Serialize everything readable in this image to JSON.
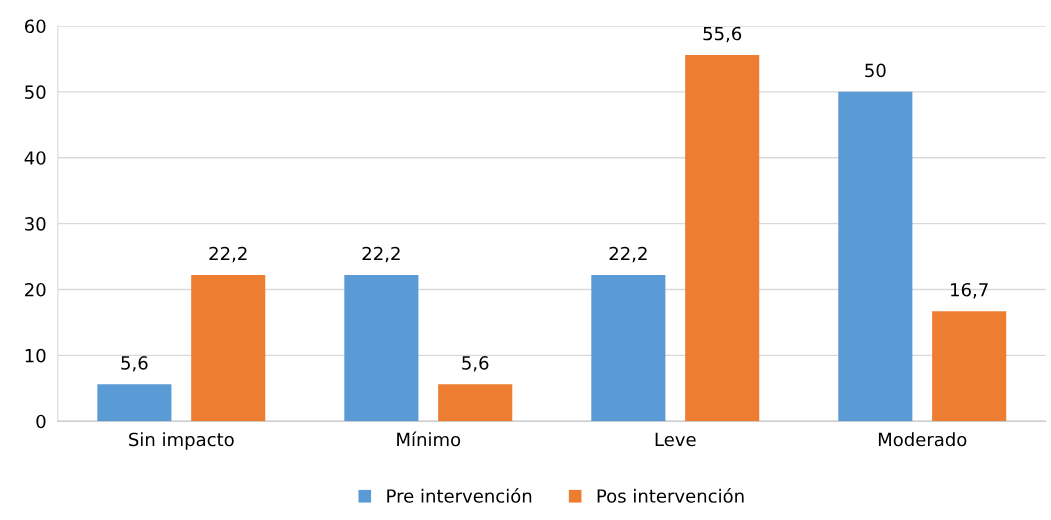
{
  "chart_data": {
    "type": "bar",
    "categories": [
      "Sin impacto",
      "Mínimo",
      "Leve",
      "Moderado"
    ],
    "series": [
      {
        "name": "Pre intervención",
        "color": "#5b9bd5",
        "values": [
          5.6,
          22.2,
          22.2,
          50
        ],
        "value_labels": [
          "5,6",
          "22,2",
          "22,2",
          "50"
        ]
      },
      {
        "name": "Pos intervención",
        "color": "#ed7d31",
        "values": [
          22.2,
          5.6,
          55.6,
          16.7
        ],
        "value_labels": [
          "22,2",
          "5,6",
          "55,6",
          "16,7"
        ]
      }
    ],
    "ylim": [
      0,
      60
    ],
    "yticks": [
      0,
      10,
      20,
      30,
      40,
      50,
      60
    ],
    "grid": "y",
    "legend": "bottom"
  }
}
